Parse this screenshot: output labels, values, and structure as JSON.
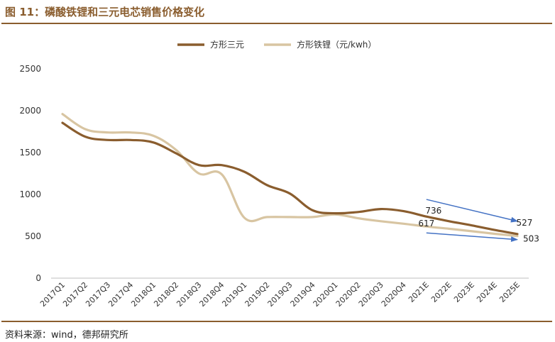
{
  "title": "图 11：磷酸铁锂和三元电芯销售价格变化",
  "source": "资料来源：wind，德邦研究所",
  "chart_data": {
    "type": "line",
    "title": "图 11：磷酸铁锂和三元电芯销售价格变化",
    "xlabel": "",
    "ylabel": "",
    "ylim": [
      0,
      2500
    ],
    "yticks": [
      0,
      500,
      1000,
      1500,
      2000,
      2500
    ],
    "grid": false,
    "legend": "top-center",
    "categories": [
      "2017Q1",
      "2017Q2",
      "2017Q3",
      "2017Q4",
      "2018Q1",
      "2018Q2",
      "2018Q3",
      "2018Q4",
      "2019Q1",
      "2019Q2",
      "2019Q3",
      "2019Q4",
      "2020Q1",
      "2020Q2",
      "2020Q3",
      "2020Q4",
      "2021E",
      "2022E",
      "2023E",
      "2024E",
      "2025E"
    ],
    "series": [
      {
        "name": "方形三元",
        "color": "#8a5d2e",
        "values": [
          1855,
          1690,
          1650,
          1650,
          1620,
          1490,
          1350,
          1350,
          1270,
          1110,
          1010,
          810,
          775,
          790,
          825,
          800,
          736,
          680,
          630,
          575,
          527
        ]
      },
      {
        "name": "方形铁锂（元/kwh）",
        "color": "#d8c5a2",
        "values": [
          1960,
          1780,
          1740,
          1740,
          1700,
          1530,
          1250,
          1240,
          720,
          730,
          730,
          730,
          760,
          715,
          680,
          650,
          617,
          590,
          560,
          530,
          503
        ]
      }
    ],
    "annotations": [
      {
        "text": "736",
        "x": "2021E",
        "y": 736
      },
      {
        "text": "527",
        "x": "2025E",
        "y": 527
      },
      {
        "text": "617",
        "x": "2021E",
        "y": 617
      },
      {
        "text": "503",
        "x": "2025E",
        "y": 503
      }
    ],
    "arrows": [
      {
        "from": "2021E",
        "to": "2025E",
        "color": "#4472c4",
        "y_from": 940,
        "y_to": 680
      },
      {
        "from": "2021E",
        "to": "2025E",
        "color": "#4472c4",
        "y_from": 540,
        "y_to": 460
      }
    ]
  }
}
